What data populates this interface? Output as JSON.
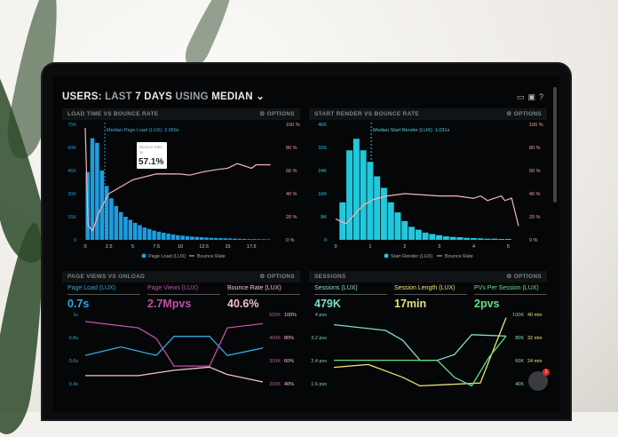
{
  "header": {
    "title_prefix": "USERS:",
    "title_mid1": "LAST",
    "title_days": "7 DAYS",
    "title_mid2": "USING",
    "title_metric": "MEDIAN",
    "toolbar_icons": [
      "monitor-icon",
      "window-icon",
      "help-icon"
    ]
  },
  "options_label": "⚙ OPTIONS",
  "panels": {
    "load": {
      "title": "LOAD TIME VS BOUNCE RATE",
      "median": "Median Page Load (LUX): 2.056s",
      "tooltip_label": "Bounce Rate",
      "tooltip_sub": "%",
      "tooltip_value": "57.1%",
      "legend": [
        "Page Load (LUX)",
        "Bounce Rate"
      ]
    },
    "render": {
      "title": "START RENDER VS BOUNCE RATE",
      "median": "Median Start Render (LUX): 1.031s",
      "legend": [
        "Start Render (LUX)",
        "Bounce Rate"
      ]
    },
    "pageviews": {
      "title": "PAGE VIEWS VS ONLOAD",
      "metrics": [
        {
          "label": "Page Load (LUX)",
          "value": "0.7s",
          "color": "#2fa8de"
        },
        {
          "label": "Page Views (LUX)",
          "value": "2.7Mpvs",
          "color": "#c24fa8"
        },
        {
          "label": "Bounce Rate (LUX)",
          "value": "40.6%",
          "color": "#f4c2c8"
        }
      ]
    },
    "sessions": {
      "title": "SESSIONS",
      "metrics": [
        {
          "label": "Sessions (LUX)",
          "value": "479K",
          "color": "#7fe0c8"
        },
        {
          "label": "Session Length (LUX)",
          "value": "17min",
          "color": "#e8e27a"
        },
        {
          "label": "PVs Per Session (LUX)",
          "value": "2pvs",
          "color": "#5fe08a"
        }
      ]
    }
  },
  "chat_badge": "1",
  "chart_data": [
    {
      "type": "bar",
      "title": "LOAD TIME VS BOUNCE RATE",
      "xlim": [
        0,
        20
      ],
      "ylim": [
        0,
        75000
      ],
      "y2lim": [
        0,
        100
      ],
      "xticks": [
        "0",
        "2.5",
        "5",
        "7.5",
        "10",
        "12.5",
        "15",
        "17.5"
      ],
      "yticks": [
        "0",
        "15K",
        "30K",
        "45K",
        "60K",
        "75K"
      ],
      "y2ticks": [
        "0 %",
        "20 %",
        "40 %",
        "60 %",
        "80 %",
        "100 %"
      ],
      "bin_width": 0.5,
      "bars": [
        44,
        66,
        63,
        45,
        35,
        27,
        22,
        18,
        15,
        13,
        11,
        9.5,
        8,
        7,
        6,
        5.3,
        4.6,
        4,
        3.5,
        3,
        2.7,
        2.4,
        2.1,
        1.9,
        1.7,
        1.5,
        1.3,
        1.2,
        1.1,
        1,
        0.9,
        0.8,
        0.7,
        0.6,
        0.5,
        0.5,
        0.4,
        0.4,
        0.3
      ],
      "bars_unit": "K",
      "median": 2.056,
      "bar_color": "#1e9de0",
      "line": {
        "name": "Bounce Rate",
        "color": "#f2b6bd",
        "points": [
          [
            0,
            97
          ],
          [
            0.3,
            12
          ],
          [
            0.8,
            8
          ],
          [
            1.5,
            25
          ],
          [
            2.5,
            40
          ],
          [
            5,
            52
          ],
          [
            7.5,
            57.1
          ],
          [
            10,
            57
          ],
          [
            11,
            56
          ],
          [
            12.5,
            59
          ],
          [
            14,
            61
          ],
          [
            15,
            62
          ],
          [
            16,
            66
          ],
          [
            17.5,
            62
          ],
          [
            18,
            65
          ],
          [
            19.5,
            65
          ]
        ]
      }
    },
    {
      "type": "bar",
      "title": "START RENDER VS BOUNCE RATE",
      "xlim": [
        0,
        5.3
      ],
      "ylim": [
        0,
        40000
      ],
      "y2lim": [
        0,
        100
      ],
      "xticks": [
        "0",
        "1",
        "2",
        "3",
        "4",
        "5"
      ],
      "yticks": [
        "0",
        "8K",
        "16K",
        "24K",
        "32K",
        "40K"
      ],
      "y2ticks": [
        "0 %",
        "20 %",
        "40 %",
        "60 %",
        "80 %",
        "100 %"
      ],
      "bin_start": 0.1,
      "bin_width": 0.2,
      "bars": [
        13,
        31,
        35,
        31,
        27,
        22,
        18,
        13,
        9.5,
        6.5,
        4.5,
        3.5,
        2.5,
        2,
        1.6,
        1.2,
        1,
        0.9,
        0.7,
        0.6,
        0.5,
        0.4,
        0.4,
        0.3,
        0.3
      ],
      "bars_unit": "K",
      "median": 1.031,
      "bar_color": "#22c8dc",
      "line": {
        "name": "Bounce Rate",
        "color": "#f2b6bd",
        "points": [
          [
            0,
            18
          ],
          [
            0.3,
            14
          ],
          [
            0.8,
            30
          ],
          [
            1.1,
            35
          ],
          [
            1.5,
            38
          ],
          [
            2,
            40
          ],
          [
            3,
            38
          ],
          [
            3.5,
            38
          ],
          [
            4,
            36
          ],
          [
            4.2,
            38
          ],
          [
            4.4,
            34
          ],
          [
            4.8,
            38
          ],
          [
            4.9,
            34
          ],
          [
            5.1,
            36
          ],
          [
            5.3,
            12
          ]
        ]
      }
    },
    {
      "type": "line",
      "title": "PAGE VIEWS VS ONLOAD",
      "yticks": [
        "1s",
        "0.8s",
        "0.6s",
        "0.4s"
      ],
      "y2ticks": [
        "500K",
        "400K",
        "300K",
        "200K"
      ],
      "y3ticks": [
        "100%",
        "80%",
        "60%",
        "40%"
      ],
      "series": [
        {
          "name": "Page Load (LUX)",
          "color": "#2fa8de",
          "points": [
            [
              0,
              0.6
            ],
            [
              2,
              0.68
            ],
            [
              4,
              0.6
            ],
            [
              5,
              0.78
            ],
            [
              7,
              0.78
            ],
            [
              8,
              0.6
            ],
            [
              10,
              0.67
            ]
          ]
        },
        {
          "name": "Page Views (LUX)",
          "color": "#c24fa8",
          "points": [
            [
              0,
              0.92
            ],
            [
              3,
              0.86
            ],
            [
              4,
              0.76
            ],
            [
              5,
              0.5
            ],
            [
              7,
              0.5
            ],
            [
              8,
              0.86
            ],
            [
              10,
              0.9
            ]
          ]
        },
        {
          "name": "Bounce Rate (LUX)",
          "color": "#f4c2c8",
          "points": [
            [
              0,
              0.41
            ],
            [
              3,
              0.41
            ],
            [
              5,
              0.46
            ],
            [
              7,
              0.49
            ],
            [
              8,
              0.42
            ],
            [
              10,
              0.35
            ]
          ]
        }
      ]
    },
    {
      "type": "line",
      "title": "SESSIONS",
      "yticks": [
        "4 pvs",
        "3.2 pvs",
        "2.4 pvs",
        "1.6 pvs"
      ],
      "y2ticks": [
        "100K",
        "80K",
        "60K",
        "40K"
      ],
      "y3ticks": [
        "40 min",
        "32 min",
        "24 min"
      ],
      "series": [
        {
          "name": "Sessions (LUX)",
          "color": "#7fe0c8",
          "points": [
            [
              0,
              3.25
            ],
            [
              3,
              3.05
            ],
            [
              4,
              2.7
            ],
            [
              5,
              2.0
            ],
            [
              6,
              2.0
            ],
            [
              7,
              2.2
            ],
            [
              8,
              2.9
            ],
            [
              10,
              2.85
            ]
          ]
        },
        {
          "name": "Session Length (LUX)",
          "color": "#e8e27a",
          "points": [
            [
              0,
              1.75
            ],
            [
              2,
              1.85
            ],
            [
              4,
              1.4
            ],
            [
              5,
              1.1
            ],
            [
              8.5,
              1.2
            ],
            [
              10,
              3.5
            ]
          ]
        },
        {
          "name": "PVs Per Session (LUX)",
          "color": "#5fe08a",
          "points": [
            [
              0,
              2.0
            ],
            [
              6,
              2.0
            ],
            [
              7,
              1.4
            ],
            [
              8,
              1.1
            ],
            [
              9,
              2.1
            ],
            [
              10,
              2.85
            ]
          ]
        }
      ]
    }
  ]
}
